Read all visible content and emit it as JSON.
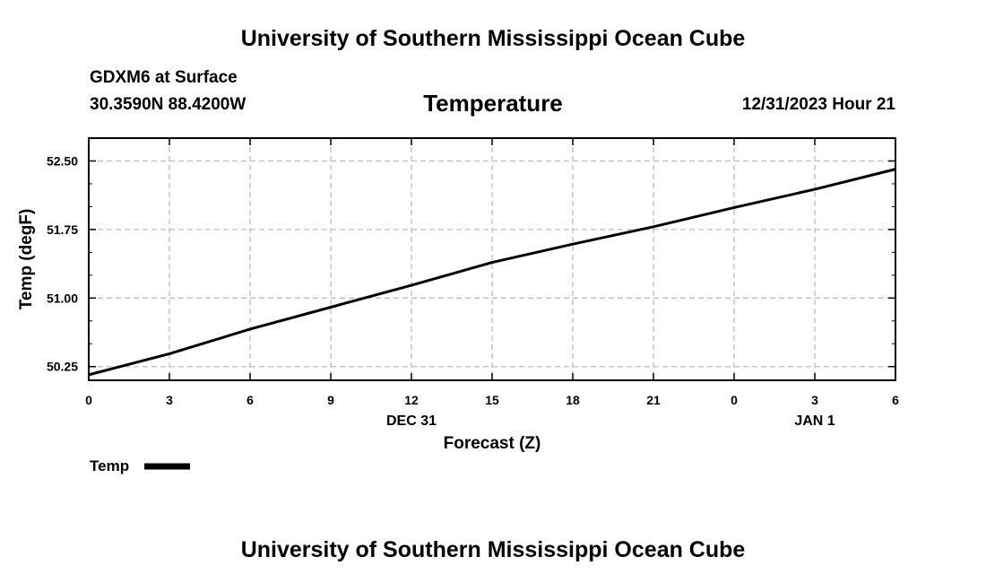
{
  "header": {
    "main_title": "University of Southern Mississippi Ocean Cube",
    "station": "GDXM6 at Surface",
    "coords": "30.3590N  88.4200W",
    "variable_title": "Temperature",
    "valid_time": "12/31/2023 Hour 21"
  },
  "footer": {
    "title": "University of Southern Mississippi Ocean Cube"
  },
  "chart_data": {
    "type": "line",
    "title": "Temperature",
    "xlabel": "Forecast (Z)",
    "ylabel": "Temp (degF)",
    "x_hours": [
      0,
      3,
      6,
      9,
      12,
      15,
      18,
      21,
      24,
      27,
      30
    ],
    "x_tick_labels": [
      "0",
      "3",
      "6",
      "9",
      "12",
      "15",
      "18",
      "21",
      "0",
      "3",
      "6"
    ],
    "date_labels": [
      {
        "hour": 12,
        "label": "DEC 31"
      },
      {
        "hour": 27,
        "label": "JAN 1"
      }
    ],
    "xlim": [
      0,
      30
    ],
    "ylim": [
      50.1,
      52.75
    ],
    "y_ticks": [
      50.25,
      51.0,
      51.75,
      52.5
    ],
    "y_tick_labels": [
      "50.25",
      "51.00",
      "51.75",
      "52.50"
    ],
    "grid": true,
    "legend": "bottom-left",
    "series": [
      {
        "name": "Temp",
        "color": "#000000",
        "x": [
          0,
          3,
          6,
          9,
          12,
          15,
          18,
          21,
          24,
          27,
          30
        ],
        "values": [
          50.16,
          50.39,
          50.66,
          50.9,
          51.14,
          51.39,
          51.59,
          51.78,
          51.99,
          52.19,
          52.41
        ]
      }
    ]
  }
}
